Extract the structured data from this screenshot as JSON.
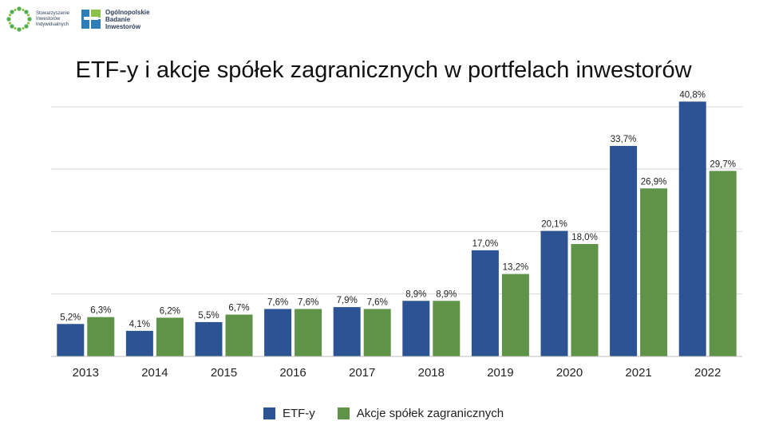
{
  "logos": {
    "sii": {
      "lines": [
        "Stowarzyszenie",
        "Inwestorów",
        "Indywidualnych"
      ]
    },
    "obi": {
      "lines": [
        "Ogólnopolskie",
        "Badanie",
        "Inwestorów"
      ]
    }
  },
  "chart_data": {
    "type": "bar",
    "title": "ETF-y i akcje spółek zagranicznych w portfelach inwestorów",
    "categories": [
      "2013",
      "2014",
      "2015",
      "2016",
      "2017",
      "2018",
      "2019",
      "2020",
      "2021",
      "2022"
    ],
    "series": [
      {
        "name": "ETF-y",
        "color": "#2c5494",
        "values": [
          5.2,
          4.1,
          5.5,
          7.6,
          7.9,
          8.9,
          17.0,
          20.1,
          33.7,
          40.8
        ],
        "labels": [
          "5,2%",
          "4,1%",
          "5,5%",
          "7,6%",
          "7,9%",
          "8,9%",
          "17,0%",
          "20,1%",
          "33,7%",
          "40,8%"
        ]
      },
      {
        "name": "Akcje spółek zagranicznych",
        "color": "#5f9347",
        "values": [
          6.3,
          6.2,
          6.7,
          7.6,
          7.6,
          8.9,
          13.2,
          18.0,
          26.9,
          29.7
        ],
        "labels": [
          "6,3%",
          "6,2%",
          "6,7%",
          "7,6%",
          "7,6%",
          "8,9%",
          "13,2%",
          "18,0%",
          "26,9%",
          "29,7%"
        ]
      }
    ],
    "ylim": [
      0,
      40
    ],
    "yticks": [
      0,
      10,
      20,
      30,
      40
    ],
    "ytick_labels_shown": false,
    "grid": true,
    "legend_position": "bottom"
  }
}
